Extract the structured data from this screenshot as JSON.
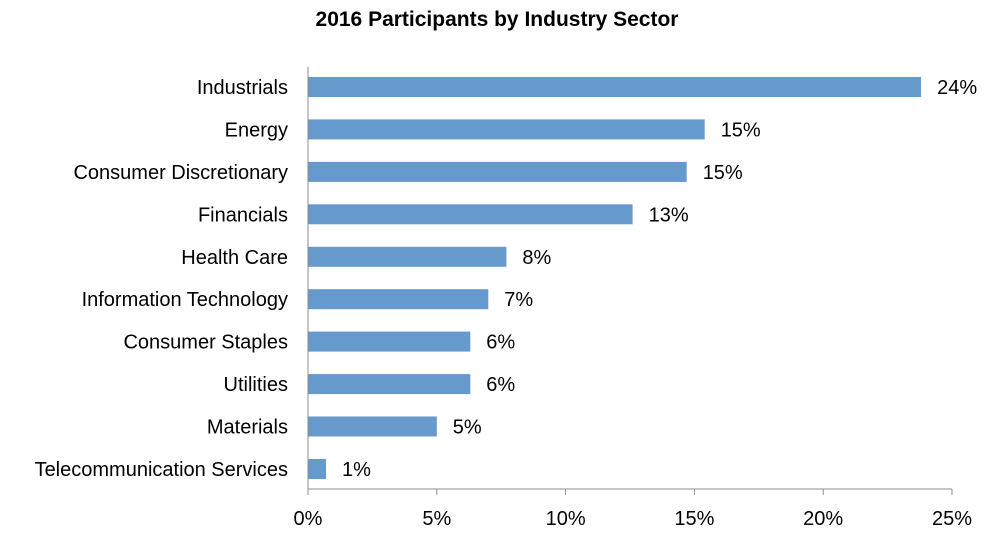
{
  "chart_data": {
    "type": "bar",
    "orientation": "horizontal",
    "title": "2016 Participants by Industry Sector",
    "categories": [
      "Industrials",
      "Energy",
      "Consumer Discretionary",
      "Financials",
      "Health Care",
      "Information Technology",
      "Consumer Staples",
      "Utilities",
      "Materials",
      "Telecommunication Services"
    ],
    "values": [
      23.8,
      15.4,
      14.7,
      12.6,
      7.7,
      7.0,
      6.3,
      6.3,
      5.0,
      0.7
    ],
    "data_labels": [
      "24%",
      "15%",
      "15%",
      "13%",
      "8%",
      "7%",
      "6%",
      "6%",
      "5%",
      "1%"
    ],
    "xlim": [
      0,
      25
    ],
    "x_ticks": [
      0,
      5,
      10,
      15,
      20,
      25
    ],
    "x_tick_labels": [
      "0%",
      "5%",
      "10%",
      "15%",
      "20%",
      "25%"
    ],
    "xlabel": "",
    "ylabel": "",
    "grid": false,
    "legend": "none",
    "bar_color": "#6699cc"
  }
}
